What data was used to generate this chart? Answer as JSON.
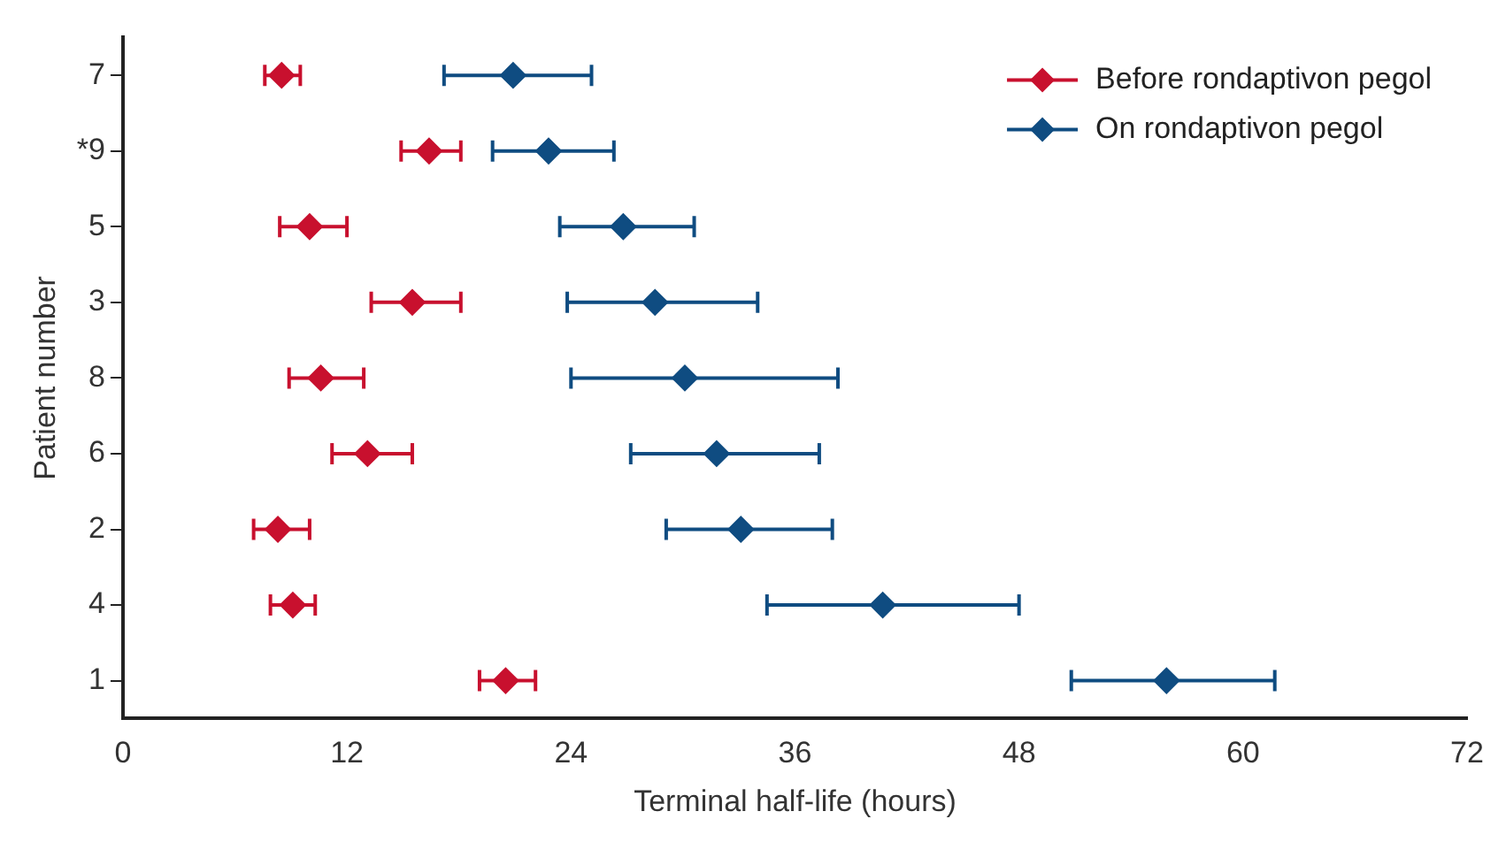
{
  "chart_data": {
    "type": "scatter",
    "orientation": "horizontal",
    "xlabel": "Terminal half-life (hours)",
    "ylabel": "Patient number",
    "categories": [
      "7",
      "*9",
      "5",
      "3",
      "8",
      "6",
      "2",
      "4",
      "1"
    ],
    "xlim": [
      0,
      72
    ],
    "xticks": [
      0,
      12,
      24,
      36,
      48,
      60,
      72
    ],
    "grid": false,
    "legend": "top right",
    "marker": "diamond",
    "series": [
      {
        "name": "Before rondaptivon pegol",
        "color": "#c8102e",
        "values": [
          8.5,
          16.4,
          10.0,
          15.5,
          10.6,
          13.1,
          8.3,
          9.1,
          20.5
        ],
        "errors": [
          [
            7.6,
            9.5
          ],
          [
            14.9,
            18.1
          ],
          [
            8.4,
            12.0
          ],
          [
            13.3,
            18.1
          ],
          [
            8.9,
            12.9
          ],
          [
            11.2,
            15.5
          ],
          [
            7.0,
            10.0
          ],
          [
            7.9,
            10.3
          ],
          [
            19.1,
            22.1
          ]
        ]
      },
      {
        "name": "On rondaptivon pegol",
        "color": "#0f4c81",
        "values": [
          20.9,
          22.8,
          26.8,
          28.5,
          30.1,
          31.8,
          33.1,
          40.7,
          55.9
        ],
        "errors": [
          [
            17.2,
            25.1
          ],
          [
            19.8,
            26.3
          ],
          [
            23.4,
            30.6
          ],
          [
            23.8,
            34.0
          ],
          [
            24.0,
            38.3
          ],
          [
            27.2,
            37.3
          ],
          [
            29.1,
            38.0
          ],
          [
            34.5,
            48.0
          ],
          [
            50.8,
            61.7
          ]
        ]
      }
    ]
  }
}
